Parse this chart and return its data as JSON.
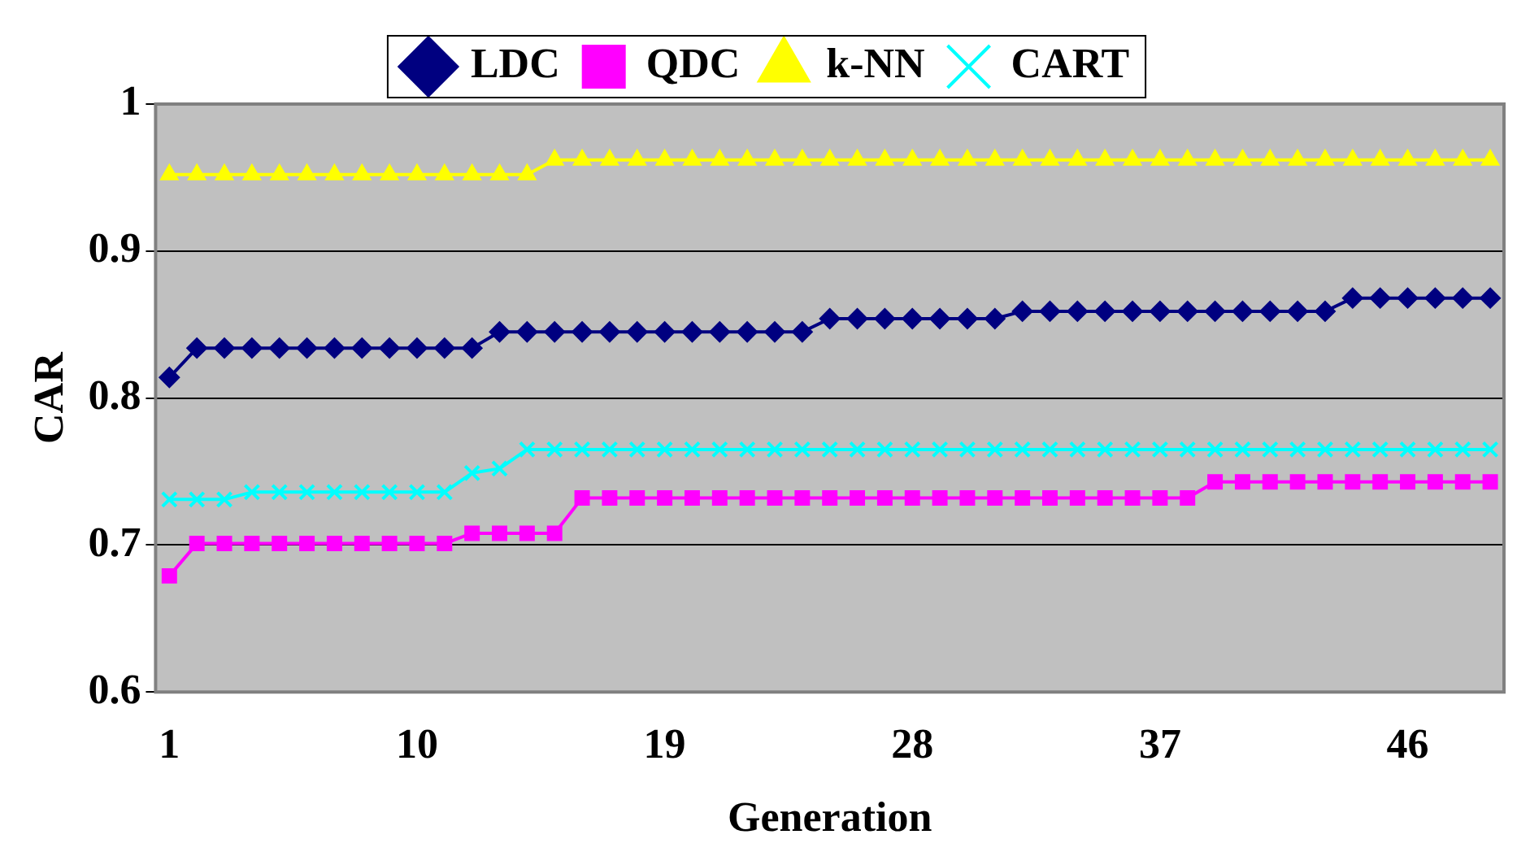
{
  "chart_data": {
    "type": "line",
    "xlabel": "Generation",
    "ylabel": "CAR",
    "categories": [
      "1",
      null,
      null,
      null,
      null,
      null,
      null,
      null,
      null,
      "10",
      null,
      null,
      null,
      null,
      null,
      null,
      null,
      null,
      "19",
      null,
      null,
      null,
      null,
      null,
      null,
      null,
      null,
      "28",
      null,
      null,
      null,
      null,
      null,
      null,
      null,
      null,
      "37",
      null,
      null,
      null,
      null,
      null,
      null,
      null,
      null,
      "46",
      null,
      null,
      null
    ],
    "ylim": [
      0.6,
      1
    ],
    "yticks": [
      0.6,
      0.7,
      0.8,
      0.9,
      1
    ],
    "grid": "y",
    "legend": "top",
    "series": [
      {
        "name": "LDC",
        "color": "#000080",
        "marker": "diamond",
        "values": [
          0.814,
          0.834,
          0.834,
          0.834,
          0.834,
          0.834,
          0.834,
          0.834,
          0.834,
          0.834,
          0.834,
          0.834,
          0.845,
          0.845,
          0.845,
          0.845,
          0.845,
          0.845,
          0.845,
          0.845,
          0.845,
          0.845,
          0.845,
          0.845,
          0.854,
          0.854,
          0.854,
          0.854,
          0.854,
          0.854,
          0.854,
          0.859,
          0.859,
          0.859,
          0.859,
          0.859,
          0.859,
          0.859,
          0.859,
          0.859,
          0.859,
          0.859,
          0.859,
          0.868,
          0.868,
          0.868,
          0.868,
          0.868,
          0.868
        ]
      },
      {
        "name": "QDC",
        "color": "#ff00ff",
        "marker": "square",
        "values": [
          0.679,
          0.701,
          0.701,
          0.701,
          0.701,
          0.701,
          0.701,
          0.701,
          0.701,
          0.701,
          0.701,
          0.708,
          0.708,
          0.708,
          0.708,
          0.732,
          0.732,
          0.732,
          0.732,
          0.732,
          0.732,
          0.732,
          0.732,
          0.732,
          0.732,
          0.732,
          0.732,
          0.732,
          0.732,
          0.732,
          0.732,
          0.732,
          0.732,
          0.732,
          0.732,
          0.732,
          0.732,
          0.732,
          0.743,
          0.743,
          0.743,
          0.743,
          0.743,
          0.743,
          0.743,
          0.743,
          0.743,
          0.743,
          0.743
        ]
      },
      {
        "name": "k-NN",
        "color": "#ffff00",
        "marker": "triangle",
        "values": [
          0.952,
          0.952,
          0.952,
          0.952,
          0.952,
          0.952,
          0.952,
          0.952,
          0.952,
          0.952,
          0.952,
          0.952,
          0.952,
          0.952,
          0.962,
          0.962,
          0.962,
          0.962,
          0.962,
          0.962,
          0.962,
          0.962,
          0.962,
          0.962,
          0.962,
          0.962,
          0.962,
          0.962,
          0.962,
          0.962,
          0.962,
          0.962,
          0.962,
          0.962,
          0.962,
          0.962,
          0.962,
          0.962,
          0.962,
          0.962,
          0.962,
          0.962,
          0.962,
          0.962,
          0.962,
          0.962,
          0.962,
          0.962,
          0.962
        ]
      },
      {
        "name": "CART",
        "color": "#00ffff",
        "marker": "cross",
        "values": [
          0.731,
          0.731,
          0.731,
          0.736,
          0.736,
          0.736,
          0.736,
          0.736,
          0.736,
          0.736,
          0.736,
          0.749,
          0.752,
          0.765,
          0.765,
          0.765,
          0.765,
          0.765,
          0.765,
          0.765,
          0.765,
          0.765,
          0.765,
          0.765,
          0.765,
          0.765,
          0.765,
          0.765,
          0.765,
          0.765,
          0.765,
          0.765,
          0.765,
          0.765,
          0.765,
          0.765,
          0.765,
          0.765,
          0.765,
          0.765,
          0.765,
          0.765,
          0.765,
          0.765,
          0.765,
          0.765,
          0.765,
          0.765,
          0.765
        ]
      }
    ]
  }
}
